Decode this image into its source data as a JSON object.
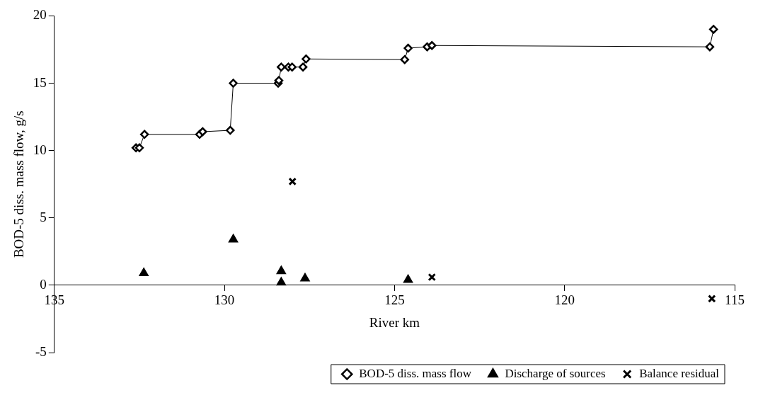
{
  "chart_data": {
    "type": "scatter",
    "xlabel": "River km",
    "ylabel": "BOD-5 diss. mass flow, g/s",
    "xlim": [
      135,
      115
    ],
    "xticks": [
      135,
      130,
      125,
      120,
      115
    ],
    "ylim": [
      -5,
      20
    ],
    "yticks": [
      -5,
      0,
      5,
      10,
      15,
      20
    ],
    "grid": false,
    "legend": "bottom",
    "series": [
      {
        "name": "BOD-5 diss. mass flow",
        "type": "line",
        "marker": "diamond",
        "color": "#000000",
        "x": [
          132.6,
          132.5,
          132.35,
          130.73,
          130.64,
          129.83,
          129.74,
          128.42,
          128.4,
          128.33,
          128.12,
          128.01,
          127.69,
          127.6,
          124.7,
          124.6,
          124.04,
          123.9,
          115.73,
          115.62
        ],
        "values": [
          10.2,
          10.2,
          11.2,
          11.2,
          11.4,
          11.5,
          15.0,
          15.0,
          15.2,
          16.2,
          16.2,
          16.2,
          16.2,
          16.8,
          16.75,
          17.6,
          17.7,
          17.8,
          17.7,
          19.0
        ]
      },
      {
        "name": "Discharge of sources",
        "type": "scatter",
        "marker": "triangle",
        "color": "#000000",
        "x": [
          132.37,
          129.74,
          128.33,
          128.33,
          127.63,
          124.6
        ],
        "values": [
          0.9,
          3.4,
          1.05,
          0.2,
          0.5,
          0.4
        ]
      },
      {
        "name": "Balance residual",
        "type": "scatter",
        "marker": "cross",
        "color": "#000000",
        "x": [
          128.0,
          123.9,
          115.67
        ],
        "values": [
          7.7,
          0.6,
          -1.0
        ]
      }
    ]
  }
}
